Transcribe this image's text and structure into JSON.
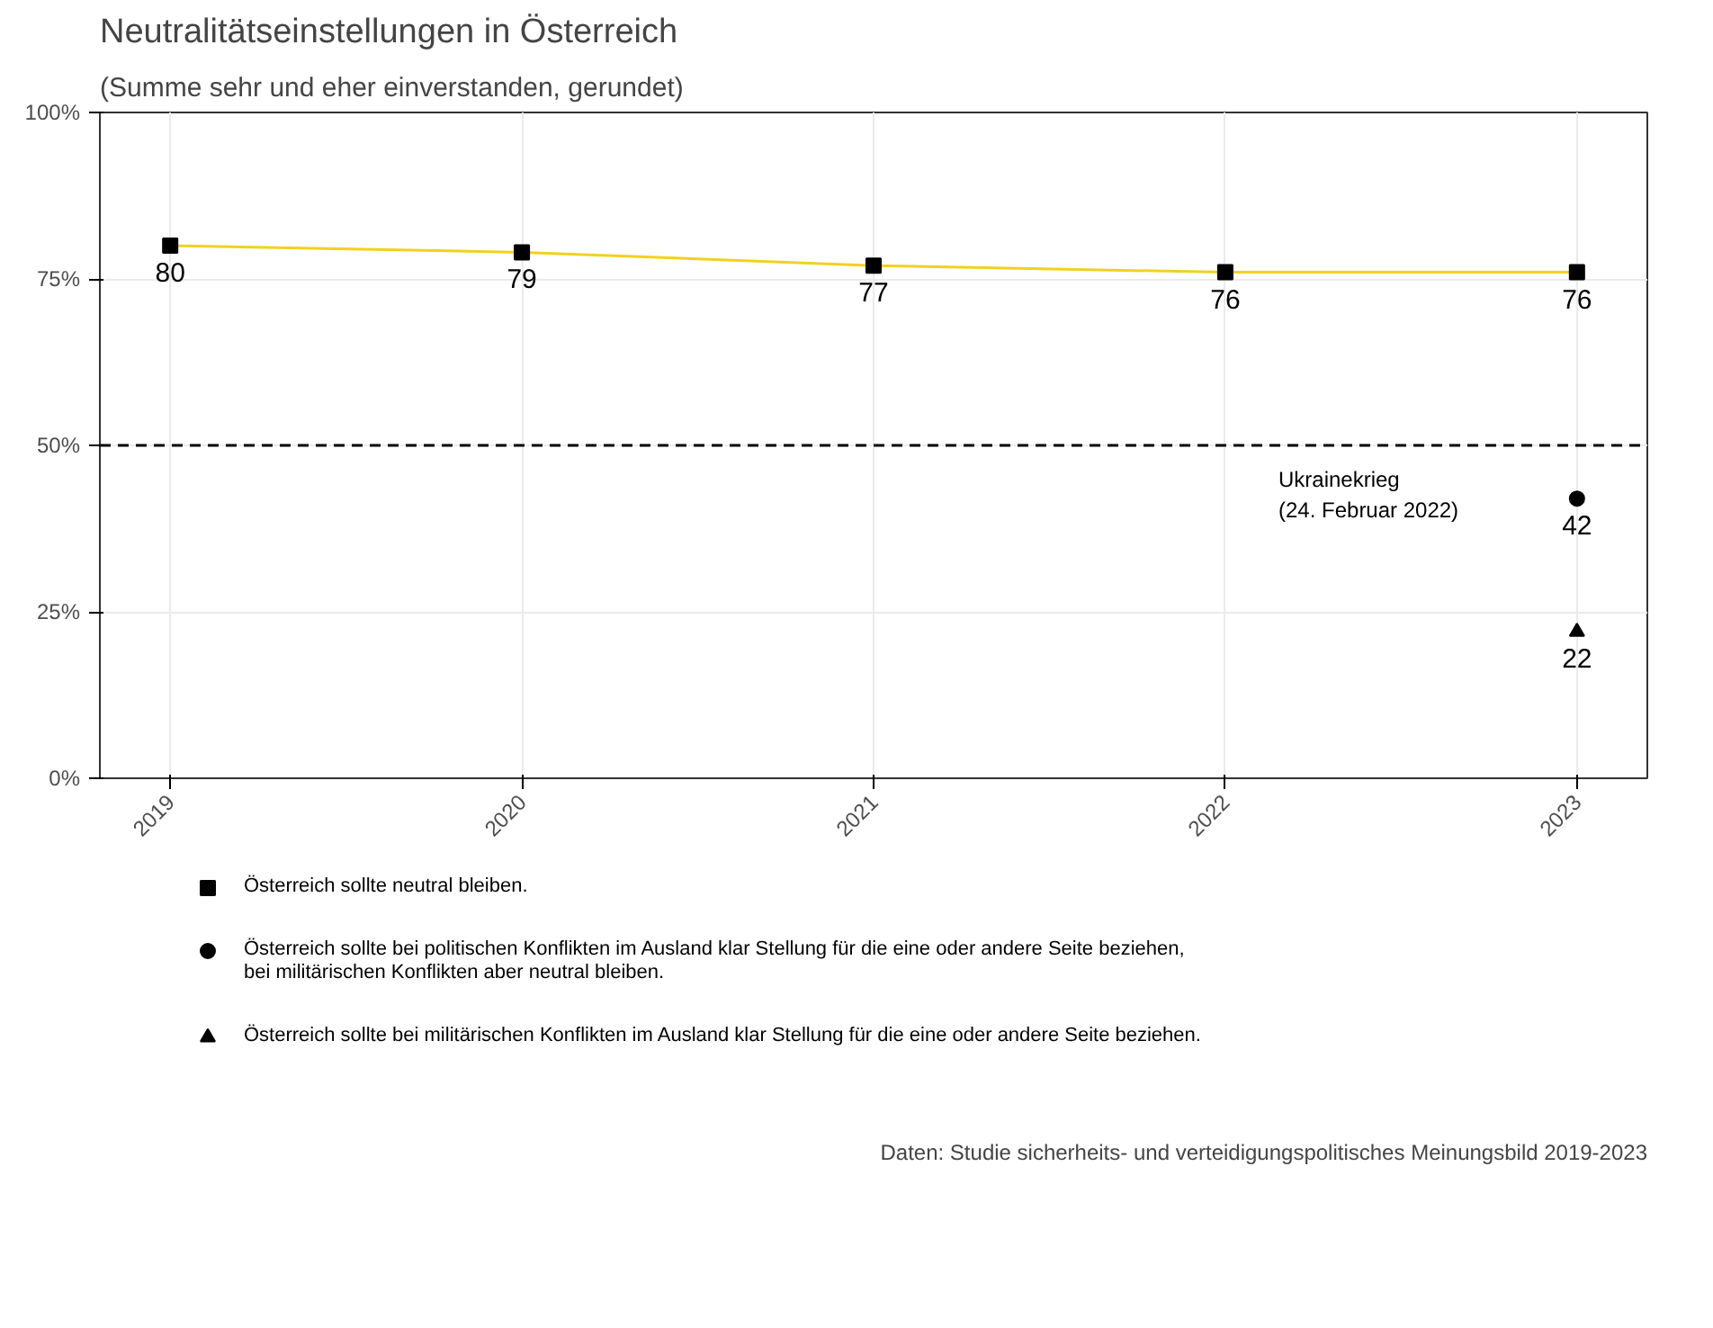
{
  "chart_data": {
    "type": "scatter",
    "title": "Neutralitätseinstellungen in Österreich",
    "subtitle": "(Summe sehr und eher einverstanden, gerundet)",
    "x": [
      2019,
      2020,
      2021,
      2022,
      2023
    ],
    "xlim": [
      2018.8,
      2023.2
    ],
    "xticks": [
      2019,
      2020,
      2021,
      2022,
      2023
    ],
    "ylim": [
      0,
      100
    ],
    "yticks": [
      {
        "value": 0,
        "label": "0%"
      },
      {
        "value": 25,
        "label": "25%"
      },
      {
        "value": 50,
        "label": "50%"
      },
      {
        "value": 75,
        "label": "75%"
      },
      {
        "value": 100,
        "label": "100%"
      }
    ],
    "series": [
      {
        "type": "line",
        "color": "#f2d11e",
        "line_style": "solid",
        "values": [
          80,
          79,
          77,
          76,
          76
        ],
        "value_labels": [
          "80",
          "79",
          "77",
          "76",
          "76"
        ]
      },
      {
        "marker": "square",
        "name": "Österreich sollte neutral bleiben.",
        "color": "#000000",
        "values": [
          80,
          79,
          77,
          76,
          76
        ]
      },
      {
        "marker": "circle",
        "name": "Österreich sollte bei politischen Konflikten im Ausland klar Stellung für die eine oder andere Seite beziehen,\nbei militärischen Konflikten aber neutral bleiben.",
        "color": "#000000",
        "values": [
          null,
          null,
          null,
          null,
          42
        ],
        "value_labels": [
          null,
          null,
          null,
          null,
          "42"
        ]
      },
      {
        "marker": "triangle",
        "name": "Österreich sollte bei militärischen Konflikten im Ausland klar Stellung für die eine oder andere Seite beziehen.",
        "color": "#000000",
        "values": [
          null,
          null,
          null,
          null,
          22
        ],
        "value_labels": [
          null,
          null,
          null,
          null,
          "22"
        ]
      }
    ],
    "ref_lines": [
      {
        "axis": "y",
        "value": 50,
        "label": "Ukrainekrieg\n(24. Februar 2022)",
        "color": "#000000",
        "line_style": "dashed"
      }
    ],
    "grid": true,
    "legend": "bottom",
    "annotations": [
      "Daten: Studie sicherheits- und verteidigungspolitisches Meinungsbild 2019-2023"
    ]
  }
}
